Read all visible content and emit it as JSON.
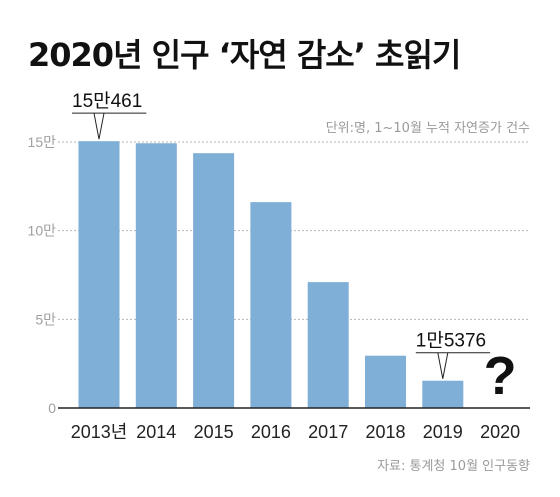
{
  "title": "2020년 인구 ‘자연 감소’ 초읽기",
  "unit_note": "단위:명, 1~10월 누적 자연증가 건수",
  "source": "자료: 통계청 10월 인구동향",
  "colors": {
    "bar": "#7fafd7",
    "grid": "#b5b5b5",
    "axis": "#222222"
  },
  "chart_data": {
    "type": "bar",
    "categories": [
      "2013년",
      "2014",
      "2015",
      "2016",
      "2017",
      "2018",
      "2019",
      "2020"
    ],
    "values": [
      150461,
      149300,
      143700,
      116100,
      71000,
      29500,
      15376,
      null
    ],
    "ylim": [
      0,
      150000
    ],
    "yticks": [
      0,
      50000,
      100000,
      150000
    ],
    "ytick_labels": [
      "0",
      "5만",
      "10만",
      "15만"
    ],
    "grid": true,
    "annotations": [
      {
        "category": "2013년",
        "label": "15만461"
      },
      {
        "category": "2019",
        "label": "1만5376"
      },
      {
        "category": "2020",
        "label": "?"
      }
    ]
  }
}
